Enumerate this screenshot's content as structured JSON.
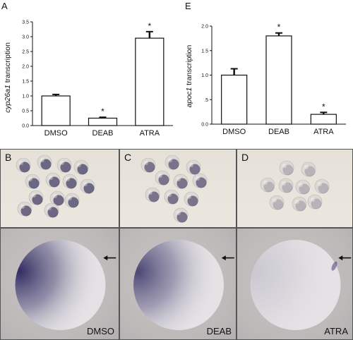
{
  "chart_data": [
    {
      "panel": "A",
      "type": "bar",
      "categories": [
        "DMSO",
        "DEAB",
        "ATRA"
      ],
      "values": [
        1.0,
        0.25,
        2.95
      ],
      "errors": [
        0.05,
        0.03,
        0.22
      ],
      "significance": [
        "",
        "*",
        "*"
      ],
      "ylabel_italic": "cyp26a1",
      "ylabel_rest": " transcription",
      "yticks": [
        "0.0",
        "0.5",
        "1.0",
        "1.5",
        "2.0",
        "2.5",
        "3.0",
        "3.5"
      ],
      "ylim": [
        0,
        3.5
      ]
    },
    {
      "panel": "E",
      "type": "bar",
      "categories": [
        "DMSO",
        "DEAB",
        "ATRA"
      ],
      "values": [
        1.0,
        1.8,
        0.2
      ],
      "errors": [
        0.13,
        0.06,
        0.04
      ],
      "significance": [
        "",
        "*",
        "*"
      ],
      "ylabel_italic": "apoc1",
      "ylabel_rest": " transcription",
      "yticks": [
        "0.0",
        ".5",
        "1.0",
        "1.5",
        "2.0"
      ],
      "ylim": [
        0,
        2.0
      ]
    }
  ],
  "images": [
    {
      "letter": "B",
      "caption": "DMSO",
      "stain": 1.0
    },
    {
      "letter": "C",
      "caption": "DEAB",
      "stain": 0.85
    },
    {
      "letter": "D",
      "caption": "ATRA",
      "stain": 0.15
    }
  ],
  "colors": {
    "bar_fill": "#ffffff",
    "bar_stroke": "#111111",
    "stain": "#2a2a5a"
  }
}
